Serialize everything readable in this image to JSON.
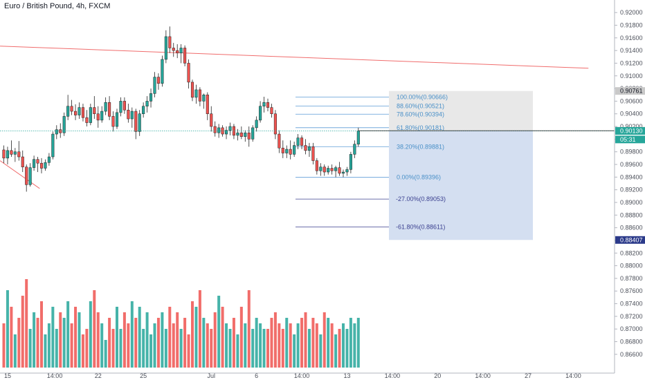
{
  "header": {
    "title": "Euro / British Pound, 4h, FXCM"
  },
  "colors": {
    "up": "#26a69a",
    "down": "#ef5350",
    "fib_line": "#5b9bd5",
    "fib_text": "#4a90c8",
    "ext_line": "#3a3f8f",
    "trend": "#f06b6b",
    "fib_box_top": "#e2e2e2",
    "fib_box_bottom": "#cfdcef",
    "price_line": "#26a69a",
    "axis_text": "#4b4f59"
  },
  "price_axis": {
    "labels": [
      "0.92000",
      "0.91800",
      "0.91600",
      "0.91400",
      "0.91200",
      "0.91000",
      "0.90800",
      "0.90600",
      "0.90400",
      "0.90200",
      "0.90000",
      "0.89800",
      "0.89600",
      "0.89400",
      "0.89200",
      "0.89000",
      "0.88800",
      "0.88600",
      "0.88400",
      "0.88200",
      "0.88000",
      "0.87800",
      "0.87600",
      "0.87400",
      "0.87200",
      "0.87000",
      "0.86800",
      "0.86600"
    ],
    "tags": [
      {
        "label": "0.90761",
        "value": 0.90761,
        "kind": "gray"
      },
      {
        "label": "0.90133",
        "value": 0.90133,
        "kind": "gray"
      },
      {
        "label": "0.90130",
        "value": 0.9013,
        "kind": "green"
      },
      {
        "label": "05:31",
        "value": 0.89995,
        "kind": "green-sub"
      },
      {
        "label": "0.88407",
        "value": 0.88407,
        "kind": "navy"
      }
    ]
  },
  "time_axis": {
    "labels": [
      {
        "label": "15",
        "index": 1
      },
      {
        "label": "14:00",
        "index": 13.5
      },
      {
        "label": "22",
        "index": 25
      },
      {
        "label": "25",
        "index": 37
      },
      {
        "label": "Jul",
        "index": 55
      },
      {
        "label": "6",
        "index": 67
      },
      {
        "label": "14:00",
        "index": 79
      },
      {
        "label": "13",
        "index": 91
      },
      {
        "label": "14:00",
        "index": 103
      },
      {
        "label": "20",
        "index": 115
      },
      {
        "label": "14:00",
        "index": 127
      },
      {
        "label": "27",
        "index": 139
      },
      {
        "label": "14:00",
        "index": 151
      }
    ]
  },
  "fib": {
    "levels": [
      {
        "label": "100.00%(0.90666)",
        "value": 0.90666,
        "kind": "retr"
      },
      {
        "label": "88.60%(0.90521)",
        "value": 0.90521,
        "kind": "retr"
      },
      {
        "label": "78.60%(0.90394)",
        "value": 0.90394,
        "kind": "retr"
      },
      {
        "label": "61.80%(0.90181)",
        "value": 0.90181,
        "kind": "retr"
      },
      {
        "label": "38.20%(0.89881)",
        "value": 0.89881,
        "kind": "retr"
      },
      {
        "label": "0.00%(0.89396)",
        "value": 0.89396,
        "kind": "retr"
      },
      {
        "label": "-27.00%(0.89053)",
        "value": 0.89053,
        "kind": "ext"
      },
      {
        "label": "-61.80%(0.88611)",
        "value": 0.88611,
        "kind": "ext"
      }
    ],
    "box_top": 0.90761,
    "box_mid": 0.90133,
    "box_bottom": 0.88407
  },
  "chart_data": {
    "type": "candlestick",
    "title": "Euro / British Pound, 4h, FXCM",
    "ylim": [
      0.865,
      0.921
    ],
    "grid": false,
    "last_price": 0.9013,
    "candles": [
      {
        "o": 0.8983,
        "h": 0.899,
        "l": 0.8962,
        "c": 0.897
      },
      {
        "o": 0.897,
        "h": 0.8988,
        "l": 0.896,
        "c": 0.8982
      },
      {
        "o": 0.8982,
        "h": 0.8998,
        "l": 0.8972,
        "c": 0.8976
      },
      {
        "o": 0.8976,
        "h": 0.8986,
        "l": 0.8964,
        "c": 0.898
      },
      {
        "o": 0.898,
        "h": 0.8997,
        "l": 0.8966,
        "c": 0.8972
      },
      {
        "o": 0.8972,
        "h": 0.8982,
        "l": 0.8948,
        "c": 0.8956
      },
      {
        "o": 0.8956,
        "h": 0.896,
        "l": 0.8917,
        "c": 0.8928
      },
      {
        "o": 0.8928,
        "h": 0.8962,
        "l": 0.8925,
        "c": 0.8955
      },
      {
        "o": 0.8955,
        "h": 0.8974,
        "l": 0.895,
        "c": 0.8968
      },
      {
        "o": 0.8968,
        "h": 0.8972,
        "l": 0.8948,
        "c": 0.8962
      },
      {
        "o": 0.8962,
        "h": 0.897,
        "l": 0.8946,
        "c": 0.8954
      },
      {
        "o": 0.8954,
        "h": 0.8968,
        "l": 0.895,
        "c": 0.8963
      },
      {
        "o": 0.8963,
        "h": 0.8978,
        "l": 0.8958,
        "c": 0.8972
      },
      {
        "o": 0.8972,
        "h": 0.9012,
        "l": 0.8968,
        "c": 0.9008
      },
      {
        "o": 0.9008,
        "h": 0.9022,
        "l": 0.9,
        "c": 0.9015
      },
      {
        "o": 0.9015,
        "h": 0.9025,
        "l": 0.9002,
        "c": 0.901
      },
      {
        "o": 0.901,
        "h": 0.9042,
        "l": 0.9005,
        "c": 0.9036
      },
      {
        "o": 0.9036,
        "h": 0.907,
        "l": 0.903,
        "c": 0.9052
      },
      {
        "o": 0.9052,
        "h": 0.9062,
        "l": 0.9038,
        "c": 0.9044
      },
      {
        "o": 0.9044,
        "h": 0.9055,
        "l": 0.903,
        "c": 0.9038
      },
      {
        "o": 0.9038,
        "h": 0.9058,
        "l": 0.9032,
        "c": 0.905
      },
      {
        "o": 0.905,
        "h": 0.9056,
        "l": 0.9028,
        "c": 0.9034
      },
      {
        "o": 0.9034,
        "h": 0.9046,
        "l": 0.902,
        "c": 0.9026
      },
      {
        "o": 0.9026,
        "h": 0.9056,
        "l": 0.9022,
        "c": 0.905
      },
      {
        "o": 0.905,
        "h": 0.9068,
        "l": 0.9032,
        "c": 0.904
      },
      {
        "o": 0.904,
        "h": 0.9052,
        "l": 0.9018,
        "c": 0.903
      },
      {
        "o": 0.903,
        "h": 0.9052,
        "l": 0.9026,
        "c": 0.9044
      },
      {
        "o": 0.9044,
        "h": 0.9066,
        "l": 0.9038,
        "c": 0.9058
      },
      {
        "o": 0.9058,
        "h": 0.9068,
        "l": 0.903,
        "c": 0.9036
      },
      {
        "o": 0.9036,
        "h": 0.9044,
        "l": 0.9012,
        "c": 0.902
      },
      {
        "o": 0.902,
        "h": 0.9048,
        "l": 0.9016,
        "c": 0.9042
      },
      {
        "o": 0.9042,
        "h": 0.9066,
        "l": 0.9036,
        "c": 0.906
      },
      {
        "o": 0.906,
        "h": 0.9066,
        "l": 0.904,
        "c": 0.9046
      },
      {
        "o": 0.9046,
        "h": 0.9056,
        "l": 0.9026,
        "c": 0.9032
      },
      {
        "o": 0.9032,
        "h": 0.905,
        "l": 0.9018,
        "c": 0.9044
      },
      {
        "o": 0.9044,
        "h": 0.9048,
        "l": 0.9,
        "c": 0.9012
      },
      {
        "o": 0.9012,
        "h": 0.9046,
        "l": 0.9005,
        "c": 0.904
      },
      {
        "o": 0.904,
        "h": 0.9058,
        "l": 0.9034,
        "c": 0.9052
      },
      {
        "o": 0.9052,
        "h": 0.9068,
        "l": 0.9042,
        "c": 0.906
      },
      {
        "o": 0.906,
        "h": 0.908,
        "l": 0.905,
        "c": 0.9072
      },
      {
        "o": 0.9072,
        "h": 0.9106,
        "l": 0.9066,
        "c": 0.9098
      },
      {
        "o": 0.9098,
        "h": 0.9104,
        "l": 0.9078,
        "c": 0.9088
      },
      {
        "o": 0.9088,
        "h": 0.9132,
        "l": 0.9083,
        "c": 0.9126
      },
      {
        "o": 0.9126,
        "h": 0.9172,
        "l": 0.912,
        "c": 0.9162
      },
      {
        "o": 0.9162,
        "h": 0.9178,
        "l": 0.9136,
        "c": 0.9144
      },
      {
        "o": 0.9144,
        "h": 0.9152,
        "l": 0.913,
        "c": 0.914
      },
      {
        "o": 0.914,
        "h": 0.915,
        "l": 0.9128,
        "c": 0.9136
      },
      {
        "o": 0.9136,
        "h": 0.915,
        "l": 0.912,
        "c": 0.9144
      },
      {
        "o": 0.9144,
        "h": 0.9148,
        "l": 0.9115,
        "c": 0.912
      },
      {
        "o": 0.912,
        "h": 0.9126,
        "l": 0.908,
        "c": 0.909
      },
      {
        "o": 0.909,
        "h": 0.9094,
        "l": 0.906,
        "c": 0.9066
      },
      {
        "o": 0.9066,
        "h": 0.9086,
        "l": 0.9056,
        "c": 0.9078
      },
      {
        "o": 0.9078,
        "h": 0.9082,
        "l": 0.9052,
        "c": 0.906
      },
      {
        "o": 0.906,
        "h": 0.9072,
        "l": 0.9048,
        "c": 0.907
      },
      {
        "o": 0.907,
        "h": 0.9074,
        "l": 0.903,
        "c": 0.904
      },
      {
        "o": 0.904,
        "h": 0.9052,
        "l": 0.9012,
        "c": 0.902
      },
      {
        "o": 0.902,
        "h": 0.9028,
        "l": 0.9004,
        "c": 0.901
      },
      {
        "o": 0.901,
        "h": 0.9024,
        "l": 0.9002,
        "c": 0.9018
      },
      {
        "o": 0.9018,
        "h": 0.9022,
        "l": 0.9004,
        "c": 0.9008
      },
      {
        "o": 0.9008,
        "h": 0.902,
        "l": 0.9,
        "c": 0.9014
      },
      {
        "o": 0.9014,
        "h": 0.9026,
        "l": 0.9006,
        "c": 0.902
      },
      {
        "o": 0.902,
        "h": 0.9024,
        "l": 0.9,
        "c": 0.9006
      },
      {
        "o": 0.9006,
        "h": 0.9016,
        "l": 0.8998,
        "c": 0.901
      },
      {
        "o": 0.901,
        "h": 0.902,
        "l": 0.9,
        "c": 0.9004
      },
      {
        "o": 0.9004,
        "h": 0.9014,
        "l": 0.8996,
        "c": 0.901
      },
      {
        "o": 0.901,
        "h": 0.902,
        "l": 0.8988,
        "c": 0.9
      },
      {
        "o": 0.9,
        "h": 0.9022,
        "l": 0.8996,
        "c": 0.9018
      },
      {
        "o": 0.9018,
        "h": 0.9036,
        "l": 0.9012,
        "c": 0.903
      },
      {
        "o": 0.903,
        "h": 0.906,
        "l": 0.9026,
        "c": 0.9052
      },
      {
        "o": 0.9052,
        "h": 0.9067,
        "l": 0.9042,
        "c": 0.9058
      },
      {
        "o": 0.9058,
        "h": 0.9064,
        "l": 0.9044,
        "c": 0.905
      },
      {
        "o": 0.905,
        "h": 0.9056,
        "l": 0.9034,
        "c": 0.904
      },
      {
        "o": 0.904,
        "h": 0.9046,
        "l": 0.9,
        "c": 0.9008
      },
      {
        "o": 0.9008,
        "h": 0.9014,
        "l": 0.8978,
        "c": 0.8986
      },
      {
        "o": 0.8986,
        "h": 0.8998,
        "l": 0.897,
        "c": 0.8978
      },
      {
        "o": 0.8978,
        "h": 0.899,
        "l": 0.897,
        "c": 0.8984
      },
      {
        "o": 0.8984,
        "h": 0.8998,
        "l": 0.8968,
        "c": 0.8976
      },
      {
        "o": 0.8976,
        "h": 0.8996,
        "l": 0.8972,
        "c": 0.899
      },
      {
        "o": 0.899,
        "h": 0.9008,
        "l": 0.8984,
        "c": 0.9002
      },
      {
        "o": 0.9002,
        "h": 0.9006,
        "l": 0.8984,
        "c": 0.899
      },
      {
        "o": 0.899,
        "h": 0.9,
        "l": 0.8976,
        "c": 0.8982
      },
      {
        "o": 0.8982,
        "h": 0.8994,
        "l": 0.8972,
        "c": 0.8988
      },
      {
        "o": 0.8988,
        "h": 0.8994,
        "l": 0.896,
        "c": 0.8966
      },
      {
        "o": 0.8966,
        "h": 0.897,
        "l": 0.8944,
        "c": 0.895
      },
      {
        "o": 0.895,
        "h": 0.8962,
        "l": 0.8942,
        "c": 0.8956
      },
      {
        "o": 0.8956,
        "h": 0.896,
        "l": 0.8942,
        "c": 0.8948
      },
      {
        "o": 0.8948,
        "h": 0.8958,
        "l": 0.8944,
        "c": 0.8954
      },
      {
        "o": 0.8954,
        "h": 0.896,
        "l": 0.8944,
        "c": 0.895
      },
      {
        "o": 0.895,
        "h": 0.8958,
        "l": 0.894,
        "c": 0.8955
      },
      {
        "o": 0.8955,
        "h": 0.8964,
        "l": 0.8942,
        "c": 0.8946
      },
      {
        "o": 0.8946,
        "h": 0.8952,
        "l": 0.894,
        "c": 0.8948
      },
      {
        "o": 0.8948,
        "h": 0.8956,
        "l": 0.8942,
        "c": 0.8952
      },
      {
        "o": 0.8952,
        "h": 0.898,
        "l": 0.8946,
        "c": 0.8976
      },
      {
        "o": 0.8976,
        "h": 0.8998,
        "l": 0.897,
        "c": 0.8992
      },
      {
        "o": 0.8992,
        "h": 0.9018,
        "l": 0.8988,
        "c": 0.9013
      }
    ],
    "volume": [
      40,
      70,
      55,
      30,
      45,
      65,
      80,
      35,
      50,
      45,
      60,
      30,
      40,
      55,
      35,
      50,
      45,
      60,
      40,
      55,
      50,
      30,
      35,
      60,
      70,
      50,
      40,
      25,
      45,
      35,
      55,
      35,
      50,
      40,
      60,
      45,
      55,
      35,
      50,
      30,
      40,
      45,
      50,
      35,
      55,
      40,
      50,
      35,
      45,
      30,
      60,
      55,
      70,
      45,
      40,
      35,
      50,
      65,
      55,
      40,
      35,
      45,
      30,
      55,
      40,
      70,
      35,
      45,
      40,
      35,
      35,
      45,
      50,
      40,
      35,
      45,
      40,
      30,
      40,
      45,
      50,
      35,
      45,
      40,
      30,
      50,
      45,
      40,
      30,
      35,
      40,
      35,
      45,
      40,
      45
    ],
    "trendlines": [
      {
        "name": "upper-resistance",
        "from": {
          "index": -1,
          "value": 0.9147
        },
        "to": {
          "index": 155,
          "value": 0.9112
        }
      },
      {
        "name": "lower-left-support",
        "from": {
          "index": -1,
          "value": 0.8966
        },
        "to": {
          "index": 9.5,
          "value": 0.8922
        }
      }
    ],
    "fib_anchor": {
      "from_index": 70,
      "to_index": 157
    }
  }
}
